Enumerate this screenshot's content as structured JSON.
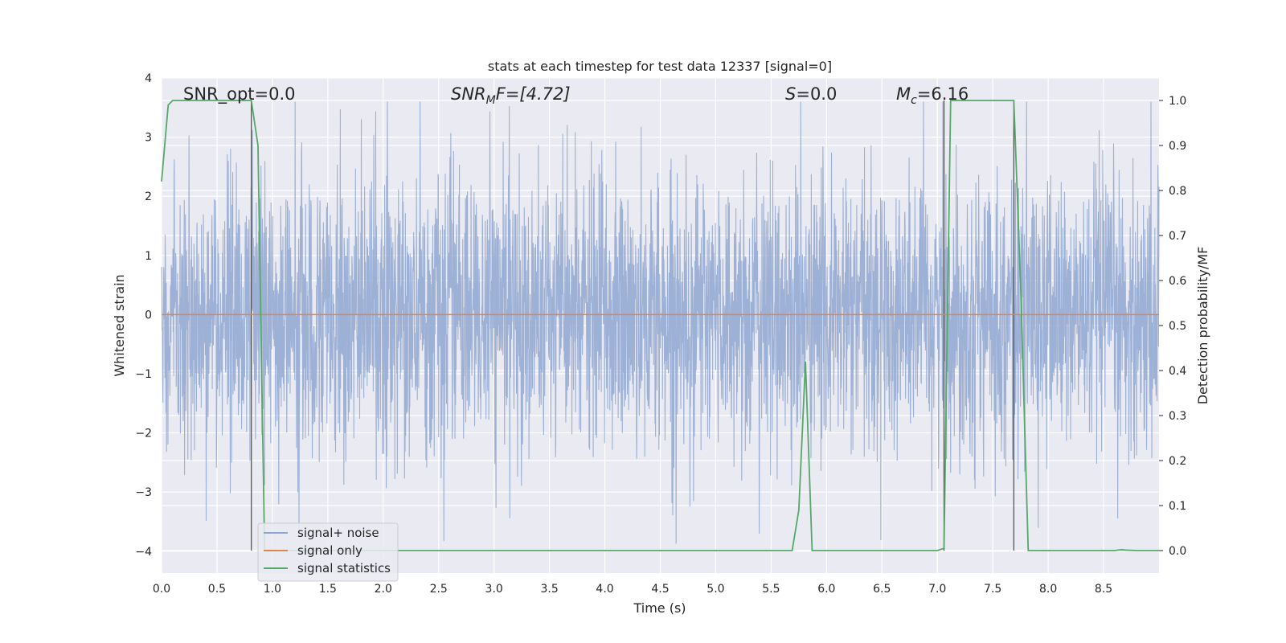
{
  "chart_data": {
    "type": "line",
    "title": "stats at each timestep for test data 12337 [signal=0]",
    "xlabel": "Time (s)",
    "ylabel_left": "Whitened strain",
    "ylabel_right": "Detection probability/MF",
    "xlim": [
      0,
      9.0
    ],
    "ylim_left": [
      -4.37,
      4.0
    ],
    "ylim_right": [
      -0.05,
      1.05
    ],
    "x_ticks": [
      "0.0",
      "0.5",
      "1.0",
      "1.5",
      "2.0",
      "2.5",
      "3.0",
      "3.5",
      "4.0",
      "4.5",
      "5.0",
      "5.5",
      "6.0",
      "6.5",
      "7.0",
      "7.5",
      "8.0",
      "8.5"
    ],
    "x_tick_values": [
      0,
      0.5,
      1.0,
      1.5,
      2.0,
      2.5,
      3.0,
      3.5,
      4.0,
      4.5,
      5.0,
      5.5,
      6.0,
      6.5,
      7.0,
      7.5,
      8.0,
      8.5
    ],
    "y_ticks_left": [
      "4",
      "3",
      "2",
      "1",
      "0",
      "−1",
      "−2",
      "−3",
      "−4"
    ],
    "y_tick_values_left": [
      4,
      3,
      2,
      1,
      0,
      -1,
      -2,
      -3,
      -4
    ],
    "y_ticks_right": [
      "1.0",
      "0.9",
      "0.8",
      "0.7",
      "0.6",
      "0.5",
      "0.4",
      "0.3",
      "0.2",
      "0.1",
      "0.0"
    ],
    "y_tick_values_right": [
      1.0,
      0.9,
      0.8,
      0.7,
      0.6,
      0.5,
      0.4,
      0.3,
      0.2,
      0.1,
      0.0
    ],
    "grid": true,
    "legend_placement": "lower-left",
    "annotations": {
      "snr_opt": "SNR_opt=0.0",
      "snr_mf_a": "SNR",
      "snr_mf_b": "M",
      "snr_mf_c": "F=[4.72]",
      "s_a": "S",
      "s_b": "=0.0",
      "mc_a": "M",
      "mc_b": "c",
      "mc_c": "=6.16"
    },
    "vertical_markers": [
      0.81,
      7.06,
      7.69
    ],
    "series": [
      {
        "name": "signal+ noise",
        "color": "#8fa6d0",
        "axis": "left",
        "kind": "noise",
        "sample_rate_hz": 200,
        "envelope_typical": 1.35,
        "envelope_peak": 3.6
      },
      {
        "name": "signal only",
        "color": "#dd8452",
        "axis": "left",
        "x": [
          0,
          9.0
        ],
        "y": [
          0,
          0
        ]
      },
      {
        "name": "signal statistics",
        "color": "#55a868",
        "axis": "right",
        "x": [
          0.0,
          0.06,
          0.1,
          0.2,
          0.5,
          0.7,
          0.81,
          0.87,
          0.93,
          1.0,
          2.0,
          3.0,
          4.0,
          5.0,
          5.5,
          5.69,
          5.75,
          5.81,
          5.87,
          6.0,
          6.5,
          7.0,
          7.06,
          7.12,
          7.2,
          7.5,
          7.69,
          7.75,
          7.82,
          8.0,
          8.5,
          8.6,
          8.66,
          8.7,
          8.8,
          9.0
        ],
        "y": [
          0.82,
          0.99,
          1.0,
          1.0,
          1.0,
          1.0,
          1.0,
          0.9,
          0.0,
          0.0,
          0.0,
          0.0,
          0.0,
          0.0,
          0.0,
          0.0,
          0.09,
          0.42,
          0.0,
          0.0,
          0.0,
          0.0,
          0.005,
          1.0,
          1.0,
          1.0,
          1.0,
          0.6,
          0.0,
          0.0,
          0.0,
          0.0,
          0.002,
          0.001,
          0.0,
          0.0
        ]
      }
    ]
  }
}
